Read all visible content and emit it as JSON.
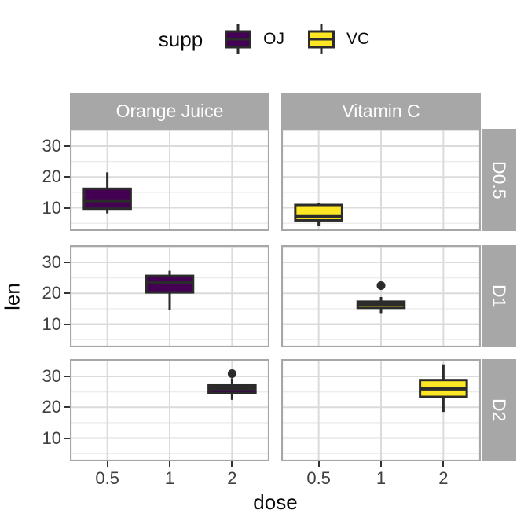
{
  "legend": {
    "title": "supp",
    "entries": [
      {
        "label": "OJ",
        "fill": "#440154"
      },
      {
        "label": "VC",
        "fill": "#FDE725"
      }
    ]
  },
  "facets": {
    "columns": [
      "Orange Juice",
      "Vitamin C"
    ],
    "rows": [
      "D0.5",
      "D1",
      "D2"
    ]
  },
  "axes": {
    "x": {
      "title": "dose"
    },
    "y": {
      "title": "len",
      "tick_labels": [
        "30",
        "20",
        "10"
      ],
      "tick_values": [
        30,
        20,
        10
      ]
    }
  },
  "colors": {
    "strip_fill": "#A7A7A7",
    "strip_text": "#FFFFFF",
    "panel_border": "#A7A7A7",
    "grid_major": "#DBDBDB",
    "grid_minor": "#ECECEC",
    "box_stroke": "#2B2B2B",
    "tick_mark": "#333333",
    "tick_text": "#404040",
    "background": "#FFFFFF"
  },
  "chart_data": {
    "type": "boxplot",
    "x_categories": [
      "0.5",
      "1",
      "2"
    ],
    "xlabel": "dose",
    "ylabel": "len",
    "y_range_displayed": [
      2.5,
      35.6
    ],
    "y_major_gridlines": [
      10,
      20,
      30
    ],
    "y_minor_gridlines": [
      5,
      15,
      25,
      35
    ],
    "legend_position": "top",
    "panels": [
      {
        "col": "Orange Juice",
        "row": "D0.5",
        "supp": "OJ",
        "dose": "0.5",
        "whisker_low": 8.2,
        "q1": 9.7,
        "median": 12.25,
        "q3": 16.175,
        "whisker_high": 21.5,
        "outliers": []
      },
      {
        "col": "Vitamin C",
        "row": "D0.5",
        "supp": "VC",
        "dose": "0.5",
        "whisker_low": 4.2,
        "q1": 5.95,
        "median": 7.15,
        "q3": 10.9,
        "whisker_high": 11.5,
        "outliers": []
      },
      {
        "col": "Orange Juice",
        "row": "D1",
        "supp": "OJ",
        "dose": "1",
        "whisker_low": 14.5,
        "q1": 20.3,
        "median": 23.45,
        "q3": 25.65,
        "whisker_high": 27.3,
        "outliers": []
      },
      {
        "col": "Vitamin C",
        "row": "D1",
        "supp": "VC",
        "dose": "1",
        "whisker_low": 13.6,
        "q1": 15.275,
        "median": 16.5,
        "q3": 17.3,
        "whisker_high": 18.8,
        "outliers": [
          22.5
        ]
      },
      {
        "col": "Orange Juice",
        "row": "D2",
        "supp": "OJ",
        "dose": "2",
        "whisker_low": 22.4,
        "q1": 24.575,
        "median": 25.95,
        "q3": 27.075,
        "whisker_high": 29.4,
        "outliers": [
          30.9
        ]
      },
      {
        "col": "Vitamin C",
        "row": "D2",
        "supp": "VC",
        "dose": "2",
        "whisker_low": 18.5,
        "q1": 23.375,
        "median": 25.95,
        "q3": 28.8,
        "whisker_high": 33.9,
        "outliers": []
      }
    ]
  }
}
